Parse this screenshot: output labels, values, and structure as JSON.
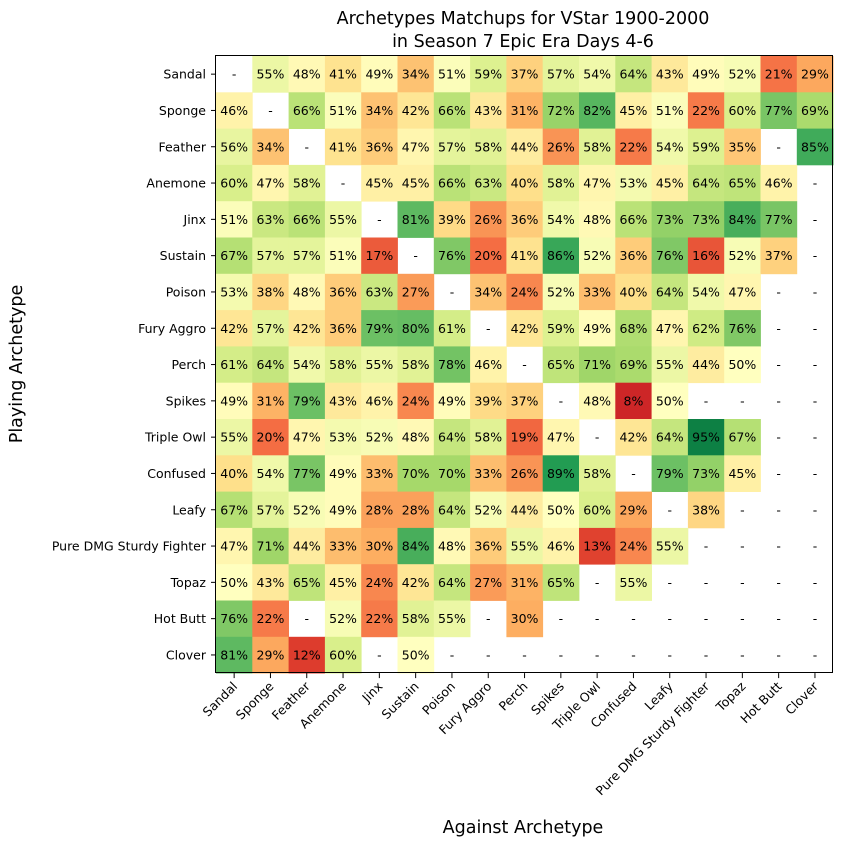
{
  "chart_data": {
    "type": "heatmap",
    "title_line1": "Archetypes Matchups for VStar 1900-2000",
    "title_line2": "in Season 7 Epic Era Days 4-6",
    "xlabel": "Against Archetype",
    "ylabel": "Playing Archetype",
    "rows": [
      "Sandal",
      "Sponge",
      "Feather",
      "Anemone",
      "Jinx",
      "Sustain",
      "Poison",
      "Fury Aggro",
      "Perch",
      "Spikes",
      "Triple Owl",
      "Confused",
      "Leafy",
      "Pure DMG Sturdy Fighter",
      "Topaz",
      "Hot Butt",
      "Clover"
    ],
    "columns": [
      "Sandal",
      "Sponge",
      "Feather",
      "Anemone",
      "Jinx",
      "Sustain",
      "Poison",
      "Fury Aggro",
      "Perch",
      "Spikes",
      "Triple Owl",
      "Confused",
      "Leafy",
      "Pure DMG Sturdy Fighter",
      "Topaz",
      "Hot Butt",
      "Clover"
    ],
    "colormap": "RdYlGn",
    "vmin": 0,
    "vmax": 100,
    "missing_label": "-",
    "values": [
      [
        null,
        55,
        48,
        41,
        49,
        34,
        51,
        59,
        37,
        57,
        54,
        64,
        43,
        49,
        52,
        21,
        29
      ],
      [
        46,
        null,
        66,
        51,
        34,
        42,
        66,
        43,
        31,
        72,
        82,
        45,
        51,
        22,
        60,
        77,
        69
      ],
      [
        56,
        34,
        null,
        41,
        36,
        47,
        57,
        58,
        44,
        26,
        58,
        22,
        54,
        59,
        35,
        null,
        85
      ],
      [
        60,
        47,
        58,
        null,
        45,
        45,
        66,
        63,
        40,
        58,
        47,
        53,
        45,
        64,
        65,
        46,
        null
      ],
      [
        51,
        63,
        66,
        55,
        null,
        81,
        39,
        26,
        36,
        54,
        48,
        66,
        73,
        73,
        84,
        77,
        null
      ],
      [
        67,
        57,
        57,
        51,
        17,
        null,
        76,
        20,
        41,
        86,
        52,
        36,
        76,
        16,
        52,
        37,
        null
      ],
      [
        53,
        38,
        48,
        36,
        63,
        27,
        null,
        34,
        24,
        52,
        33,
        40,
        64,
        54,
        47,
        null,
        null
      ],
      [
        42,
        57,
        42,
        36,
        79,
        80,
        61,
        null,
        42,
        59,
        49,
        68,
        47,
        62,
        76,
        null,
        null
      ],
      [
        61,
        64,
        54,
        58,
        55,
        58,
        78,
        46,
        null,
        65,
        71,
        69,
        55,
        44,
        50,
        null,
        null
      ],
      [
        49,
        31,
        79,
        43,
        46,
        24,
        49,
        39,
        37,
        null,
        48,
        8,
        50,
        null,
        null,
        null,
        null
      ],
      [
        55,
        20,
        47,
        53,
        52,
        48,
        64,
        58,
        19,
        47,
        null,
        42,
        64,
        95,
        67,
        null,
        null
      ],
      [
        40,
        54,
        77,
        49,
        33,
        70,
        70,
        33,
        26,
        89,
        58,
        null,
        79,
        73,
        45,
        null,
        null
      ],
      [
        67,
        57,
        52,
        49,
        28,
        28,
        64,
        52,
        44,
        50,
        60,
        29,
        null,
        38,
        null,
        null,
        null
      ],
      [
        47,
        71,
        44,
        33,
        30,
        84,
        48,
        36,
        55,
        46,
        13,
        24,
        55,
        null,
        null,
        null,
        null
      ],
      [
        50,
        43,
        65,
        45,
        24,
        42,
        64,
        27,
        31,
        65,
        null,
        55,
        null,
        null,
        null,
        null,
        null
      ],
      [
        76,
        22,
        null,
        52,
        22,
        58,
        55,
        null,
        30,
        null,
        null,
        null,
        null,
        null,
        null,
        null,
        null
      ],
      [
        81,
        29,
        12,
        60,
        null,
        50,
        null,
        null,
        null,
        null,
        null,
        null,
        null,
        null,
        null,
        null,
        null
      ]
    ]
  }
}
